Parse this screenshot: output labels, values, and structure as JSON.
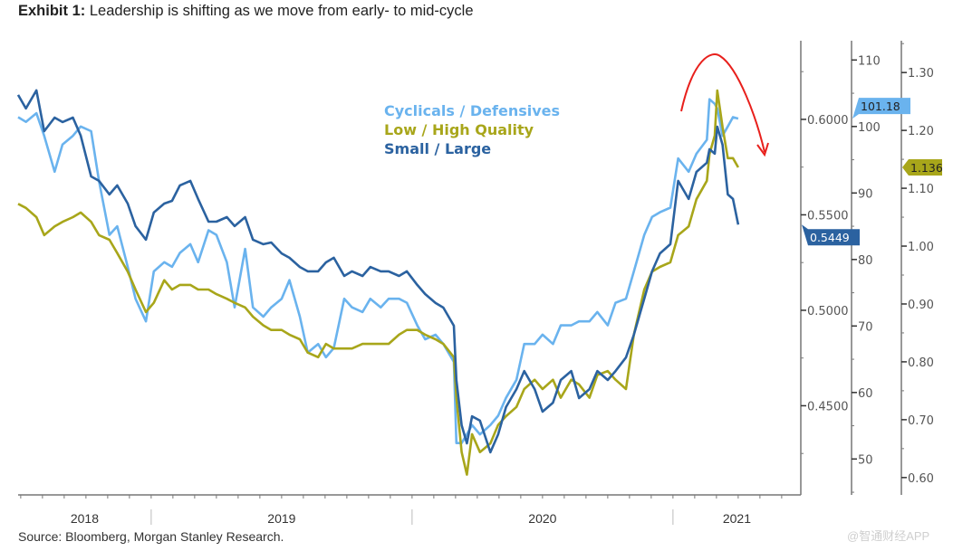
{
  "header": {
    "exhibit": "Exhibit 1:",
    "title": "Leadership is shifting as we move from early- to mid-cycle"
  },
  "footer": {
    "source": "Source: Bloomberg, Morgan Stanley Research.",
    "watermark": "@智通财经APP"
  },
  "colors": {
    "cyclicals": "#6ab3ee",
    "quality": "#a8a61a",
    "small": "#2b62a0",
    "annotation": "#e8201c",
    "axis": "#777777"
  },
  "chart_data": {
    "type": "line",
    "title": "Leadership is shifting as we move from early- to mid-cycle",
    "xlabel": "",
    "xlim": [
      2018.49,
      2021.49
    ],
    "x_year_labels": [
      {
        "label": "2018",
        "at": 2018.745
      },
      {
        "label": "2019",
        "at": 2019.5
      },
      {
        "label": "2020",
        "at": 2020.5
      },
      {
        "label": "2021",
        "at": 2021.245
      }
    ],
    "x_year_separators": [
      2019,
      2020,
      2021
    ],
    "legend_placement": "top-center",
    "axes": [
      {
        "id": "small",
        "side": "right-1",
        "ylim": [
          0.4033,
          0.6412
        ],
        "ticks": [
          "0.4500",
          "0.5000",
          "0.5500",
          "0.6000"
        ],
        "tick_values": [
          0.45,
          0.5,
          0.55,
          0.6
        ],
        "minor_step": 0.025
      },
      {
        "id": "cyc",
        "side": "right-2",
        "ylim": [
          44.6,
          112.9
        ],
        "ticks": [
          "50",
          "60",
          "70",
          "80",
          "90",
          "100",
          "110"
        ],
        "tick_values": [
          50,
          60,
          70,
          80,
          90,
          100,
          110
        ],
        "minor_step": 5
      },
      {
        "id": "qual",
        "side": "right-3",
        "ylim": [
          0.57,
          1.355
        ],
        "ticks": [
          "0.60",
          "0.70",
          "0.80",
          "0.90",
          "1.00",
          "1.10",
          "1.20",
          "1.30"
        ],
        "tick_values": [
          0.6,
          0.7,
          0.8,
          0.9,
          1.0,
          1.1,
          1.2,
          1.3
        ],
        "minor_step": 0.05
      }
    ],
    "x": [
      2018.49,
      2018.52,
      2018.56,
      2018.59,
      2018.63,
      2018.66,
      2018.7,
      2018.73,
      2018.77,
      2018.8,
      2018.84,
      2018.87,
      2018.91,
      2018.94,
      2018.98,
      2019.01,
      2019.05,
      2019.08,
      2019.11,
      2019.15,
      2019.18,
      2019.22,
      2019.25,
      2019.29,
      2019.32,
      2019.36,
      2019.39,
      2019.43,
      2019.46,
      2019.5,
      2019.53,
      2019.57,
      2019.6,
      2019.64,
      2019.67,
      2019.7,
      2019.74,
      2019.77,
      2019.81,
      2019.84,
      2019.88,
      2019.91,
      2019.95,
      2019.98,
      2020.02,
      2020.05,
      2020.09,
      2020.12,
      2020.16,
      2020.17,
      2020.19,
      2020.21,
      2020.23,
      2020.26,
      2020.3,
      2020.33,
      2020.36,
      2020.4,
      2020.43,
      2020.47,
      2020.5,
      2020.54,
      2020.57,
      2020.61,
      2020.64,
      2020.68,
      2020.71,
      2020.75,
      2020.78,
      2020.82,
      2020.85,
      2020.89,
      2020.92,
      2020.95,
      2020.99,
      2021.02,
      2021.06,
      2021.09,
      2021.13,
      2021.14,
      2021.16,
      2021.17,
      2021.19,
      2021.21,
      2021.23,
      2021.25
    ],
    "series": [
      {
        "name": "Cyclicals / Defensives",
        "key": "cyclicals",
        "axis": "cyc",
        "last_label": "101.18",
        "values": [
          101.4,
          100.7,
          102.0,
          98.6,
          93.2,
          97.3,
          98.6,
          100.0,
          99.3,
          91.8,
          83.7,
          85.0,
          78.9,
          74.1,
          70.7,
          78.2,
          79.6,
          78.9,
          81.0,
          82.3,
          79.6,
          84.4,
          83.7,
          79.6,
          72.8,
          81.6,
          72.8,
          71.4,
          72.8,
          74.1,
          76.9,
          71.4,
          66.0,
          67.3,
          65.3,
          66.7,
          74.1,
          72.8,
          72.1,
          74.1,
          72.8,
          74.1,
          74.1,
          73.5,
          70.1,
          68.0,
          68.7,
          67.3,
          64.6,
          52.4,
          52.4,
          53.7,
          55.1,
          53.7,
          55.1,
          56.5,
          59.2,
          61.9,
          67.3,
          67.3,
          68.7,
          67.3,
          70.1,
          70.1,
          70.7,
          70.7,
          72.1,
          70.1,
          73.5,
          74.1,
          78.2,
          83.7,
          86.4,
          87.1,
          87.8,
          95.2,
          93.2,
          95.9,
          98.0,
          104.1,
          103.4,
          102.7,
          98.6,
          100.0,
          101.4,
          101.18
        ]
      },
      {
        "name": "Low / High Quality",
        "key": "quality",
        "axis": "qual",
        "last_label": "1.136",
        "values": [
          1.073,
          1.066,
          1.05,
          1.019,
          1.034,
          1.042,
          1.05,
          1.058,
          1.042,
          1.019,
          1.011,
          0.988,
          0.956,
          0.925,
          0.886,
          0.902,
          0.941,
          0.925,
          0.933,
          0.933,
          0.925,
          0.925,
          0.917,
          0.909,
          0.902,
          0.894,
          0.878,
          0.863,
          0.855,
          0.855,
          0.847,
          0.839,
          0.816,
          0.808,
          0.831,
          0.823,
          0.823,
          0.823,
          0.831,
          0.831,
          0.831,
          0.831,
          0.847,
          0.855,
          0.855,
          0.847,
          0.839,
          0.831,
          0.808,
          0.738,
          0.644,
          0.605,
          0.675,
          0.644,
          0.659,
          0.691,
          0.706,
          0.722,
          0.753,
          0.769,
          0.753,
          0.769,
          0.738,
          0.769,
          0.761,
          0.738,
          0.777,
          0.784,
          0.769,
          0.753,
          0.847,
          0.925,
          0.956,
          0.964,
          0.972,
          1.019,
          1.034,
          1.081,
          1.113,
          1.159,
          1.191,
          1.269,
          1.206,
          1.152,
          1.152,
          1.136
        ]
      },
      {
        "name": "Small / Large",
        "key": "small",
        "axis": "small",
        "last_label": "0.5449",
        "values": [
          0.6128,
          0.6057,
          0.6152,
          0.5938,
          0.6009,
          0.5986,
          0.6009,
          0.5915,
          0.5701,
          0.5678,
          0.5607,
          0.5654,
          0.5559,
          0.5441,
          0.537,
          0.5512,
          0.5559,
          0.5573,
          0.5654,
          0.5678,
          0.5583,
          0.5464,
          0.5464,
          0.5488,
          0.5441,
          0.5488,
          0.537,
          0.5346,
          0.5355,
          0.5298,
          0.5275,
          0.5227,
          0.5204,
          0.5204,
          0.5251,
          0.5275,
          0.518,
          0.5204,
          0.518,
          0.5227,
          0.5204,
          0.5204,
          0.518,
          0.5204,
          0.5133,
          0.5085,
          0.5038,
          0.5014,
          0.4919,
          0.4635,
          0.4398,
          0.4303,
          0.4445,
          0.4422,
          0.4256,
          0.435,
          0.4493,
          0.4587,
          0.4682,
          0.4587,
          0.4469,
          0.4516,
          0.4635,
          0.4682,
          0.454,
          0.4587,
          0.4682,
          0.4635,
          0.4682,
          0.4753,
          0.4872,
          0.5061,
          0.5204,
          0.5298,
          0.5346,
          0.5678,
          0.5583,
          0.5725,
          0.5773,
          0.5844,
          0.582,
          0.5962,
          0.5867,
          0.5607,
          0.5583,
          0.5449
        ]
      }
    ],
    "annotation": "red arc arrow indicating peak and reversal"
  }
}
